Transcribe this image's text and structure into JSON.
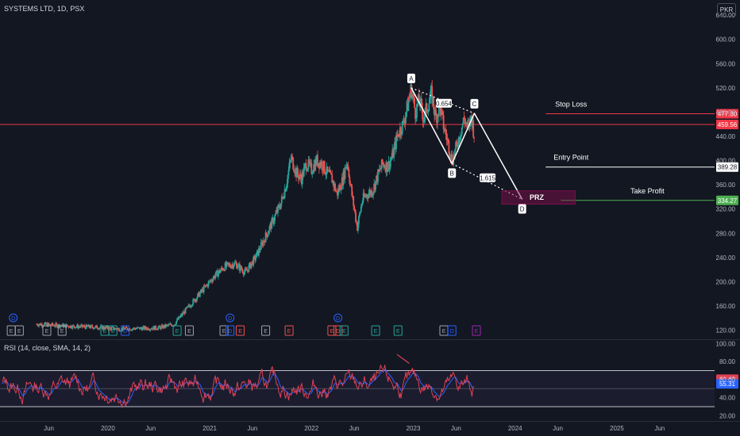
{
  "header": {
    "title": "SYSTEMS LTD, 1D, PSX",
    "currency": "PKR"
  },
  "rsi_title": "RSI (14, close, SMA, 14, 2)",
  "colors": {
    "bg": "#131722",
    "up": "#26a69a",
    "down": "#ef5350",
    "rsi": "#e04155",
    "rsi_ma": "#2962ff",
    "price_line": "#f23645",
    "pattern": "#ffffff"
  },
  "chart_data": [
    {
      "type": "line",
      "name": "price",
      "ylim": [
        105,
        665
      ],
      "y_ticks": [
        "640.00",
        "600.00",
        "560.00",
        "520.00",
        "480.00",
        "440.00",
        "400.00",
        "360.00",
        "320.00",
        "280.00",
        "240.00",
        "200.00",
        "160.00",
        "120.00"
      ],
      "y_tick_values": [
        640,
        600,
        560,
        520,
        480,
        440,
        400,
        360,
        320,
        280,
        240,
        200,
        160,
        120
      ],
      "x_ticks": [
        "Jun",
        "2020",
        "Jun",
        "2021",
        "Jun",
        "2022",
        "Jun",
        "2023",
        "Jun",
        "2024",
        "Jun",
        "2025",
        "Jun"
      ],
      "x_tick_values": [
        2019.42,
        2020.0,
        2020.42,
        2021.0,
        2021.42,
        2022.0,
        2022.42,
        2023.0,
        2023.42,
        2024.0,
        2024.42,
        2025.0,
        2025.42
      ],
      "price_path": [
        [
          2019.3,
          130
        ],
        [
          2019.5,
          128
        ],
        [
          2019.7,
          126
        ],
        [
          2019.9,
          125
        ],
        [
          2020.1,
          122
        ],
        [
          2020.3,
          123
        ],
        [
          2020.5,
          124
        ],
        [
          2020.65,
          130
        ],
        [
          2020.75,
          150
        ],
        [
          2020.85,
          170
        ],
        [
          2020.95,
          190
        ],
        [
          2021.05,
          210
        ],
        [
          2021.15,
          225
        ],
        [
          2021.25,
          230
        ],
        [
          2021.35,
          215
        ],
        [
          2021.45,
          240
        ],
        [
          2021.55,
          275
        ],
        [
          2021.62,
          300
        ],
        [
          2021.7,
          330
        ],
        [
          2021.75,
          360
        ],
        [
          2021.8,
          405
        ],
        [
          2021.85,
          380
        ],
        [
          2021.9,
          370
        ],
        [
          2021.95,
          395
        ],
        [
          2022.0,
          385
        ],
        [
          2022.05,
          400
        ],
        [
          2022.1,
          395
        ],
        [
          2022.15,
          380
        ],
        [
          2022.2,
          370
        ],
        [
          2022.25,
          345
        ],
        [
          2022.3,
          365
        ],
        [
          2022.35,
          400
        ],
        [
          2022.4,
          340
        ],
        [
          2022.45,
          290
        ],
        [
          2022.5,
          335
        ],
        [
          2022.55,
          345
        ],
        [
          2022.6,
          350
        ],
        [
          2022.65,
          375
        ],
        [
          2022.7,
          395
        ],
        [
          2022.75,
          390
        ],
        [
          2022.8,
          410
        ],
        [
          2022.85,
          445
        ],
        [
          2022.9,
          460
        ],
        [
          2022.95,
          495
        ],
        [
          2022.98,
          520
        ],
        [
          2023.02,
          480
        ],
        [
          2023.06,
          500
        ],
        [
          2023.1,
          470
        ],
        [
          2023.14,
          490
        ],
        [
          2023.18,
          510
        ],
        [
          2023.22,
          470
        ],
        [
          2023.26,
          490
        ],
        [
          2023.3,
          455
        ],
        [
          2023.34,
          430
        ],
        [
          2023.38,
          400
        ],
        [
          2023.42,
          420
        ],
        [
          2023.46,
          445
        ],
        [
          2023.5,
          470
        ],
        [
          2023.54,
          450
        ],
        [
          2023.57,
          475
        ],
        [
          2023.6,
          440
        ]
      ],
      "levels": [
        {
          "name": "Stop Loss",
          "value": 477.3,
          "label": "477.30",
          "color": "#f23645"
        },
        {
          "name": "",
          "value": 459.56,
          "label": "459.56",
          "color": "#f23645"
        },
        {
          "name": "Entry Point",
          "value": 389.28,
          "label": "389.28",
          "color": "#ffffff"
        },
        {
          "name": "Take Profit",
          "value": 334.27,
          "label": "334.27",
          "color": "#4caf50"
        }
      ],
      "pattern_points": [
        {
          "label": "A",
          "x": 2022.98,
          "y": 520
        },
        {
          "label": "B",
          "x": 2023.38,
          "y": 395
        },
        {
          "label": "C",
          "x": 2023.6,
          "y": 478
        },
        {
          "label": "D",
          "x": 2024.07,
          "y": 336
        }
      ],
      "ratios": [
        {
          "text": "0.654",
          "x": 2023.3,
          "y": 494
        },
        {
          "text": "1.615",
          "x": 2023.73,
          "y": 371
        }
      ],
      "prz": {
        "text": "PRZ",
        "x0": 2023.87,
        "x1": 2024.59,
        "y0": 328,
        "y1": 350
      },
      "events": [
        {
          "x": 2019.05,
          "t": "E",
          "c": "#a0a3ad"
        },
        {
          "x": 2019.13,
          "t": "E",
          "c": "#a0a3ad"
        },
        {
          "x": 2019.4,
          "t": "E",
          "c": "#a0a3ad"
        },
        {
          "x": 2019.55,
          "t": "E",
          "c": "#a0a3ad"
        },
        {
          "x": 2019.97,
          "t": "E",
          "c": "#26a69a"
        },
        {
          "x": 2020.05,
          "t": "E",
          "c": "#26a69a"
        },
        {
          "x": 2020.17,
          "t": "D",
          "c": "#2962ff"
        },
        {
          "x": 2020.68,
          "t": "E",
          "c": "#26a69a"
        },
        {
          "x": 2020.8,
          "t": "E",
          "c": "#a0a3ad"
        },
        {
          "x": 2021.14,
          "t": "E",
          "c": "#a0a3ad"
        },
        {
          "x": 2021.2,
          "t": "D",
          "c": "#2962ff"
        },
        {
          "x": 2021.3,
          "t": "E",
          "c": "#ef5350"
        },
        {
          "x": 2021.55,
          "t": "E",
          "c": "#a0a3ad"
        },
        {
          "x": 2021.78,
          "t": "E",
          "c": "#ef5350"
        },
        {
          "x": 2022.2,
          "t": "E",
          "c": "#ef5350"
        },
        {
          "x": 2022.26,
          "t": "D",
          "c": "#ef5350"
        },
        {
          "x": 2022.32,
          "t": "E",
          "c": "#26a69a"
        },
        {
          "x": 2022.63,
          "t": "E",
          "c": "#26a69a"
        },
        {
          "x": 2022.85,
          "t": "E",
          "c": "#26a69a"
        },
        {
          "x": 2023.3,
          "t": "E",
          "c": "#a0a3ad"
        },
        {
          "x": 2023.38,
          "t": "D",
          "c": "#2962ff"
        },
        {
          "x": 2023.62,
          "t": "E",
          "c": "#9c27b0"
        }
      ],
      "dividend_markers": [
        {
          "x": 2019.07,
          "t": "D"
        },
        {
          "x": 2021.2,
          "t": "D"
        },
        {
          "x": 2022.26,
          "t": "D"
        }
      ]
    },
    {
      "type": "line",
      "name": "rsi",
      "ylim": [
        15,
        103
      ],
      "y_ticks": [
        "100.00",
        "80.00",
        "60.00",
        "40.00",
        "20.00"
      ],
      "y_tick_values": [
        100,
        80,
        60,
        40,
        20
      ],
      "bands": [
        70,
        50,
        30
      ],
      "last_values": [
        {
          "label": "60.42",
          "value": 60.42,
          "color": "#e04155"
        },
        {
          "label": "55.31",
          "value": 55.31,
          "color": "#2962ff"
        }
      ]
    }
  ]
}
